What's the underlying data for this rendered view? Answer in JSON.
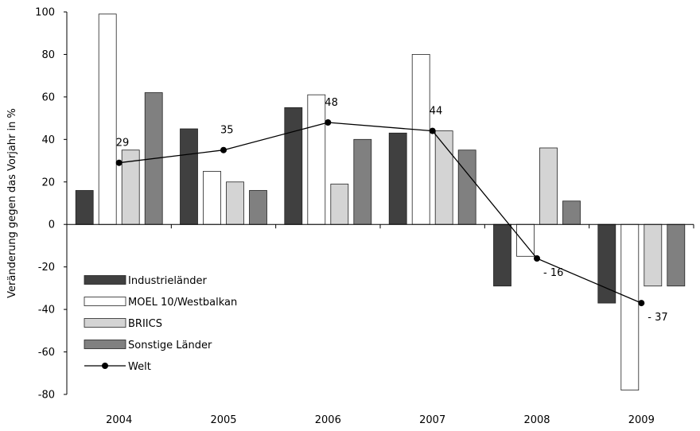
{
  "chart_data": {
    "type": "bar",
    "title": "",
    "xlabel": "",
    "ylabel": "Veränderung gegen das Vorjahr in %",
    "ylim": [
      -80,
      100
    ],
    "yticks": [
      "100",
      "80",
      "60",
      "40",
      "20",
      "0",
      "-20",
      "-40",
      "-60",
      "-80"
    ],
    "categories": [
      "2004",
      "2005",
      "2006",
      "2007",
      "2008",
      "2009"
    ],
    "series": [
      {
        "name": "Industrieländer",
        "values": [
          16,
          45,
          55,
          43,
          -29,
          -37
        ],
        "color": "#404040"
      },
      {
        "name": "MOEL 10/Westbalkan",
        "values": [
          99,
          25,
          61,
          80,
          -15,
          -78
        ],
        "color": "#ffffff"
      },
      {
        "name": "BRIICS",
        "values": [
          35,
          20,
          19,
          44,
          36,
          -29
        ],
        "color": "#d4d4d4"
      },
      {
        "name": "Sonstige Länder",
        "values": [
          62,
          16,
          40,
          35,
          11,
          -29
        ],
        "color": "#808080"
      }
    ],
    "line_series": {
      "name": "Welt",
      "values": [
        29,
        35,
        48,
        44,
        -16,
        -37
      ],
      "labels": [
        "29",
        "35",
        "48",
        "44",
        "- 16",
        "- 37"
      ]
    },
    "grid": false,
    "legend_position": "bottom-left"
  }
}
